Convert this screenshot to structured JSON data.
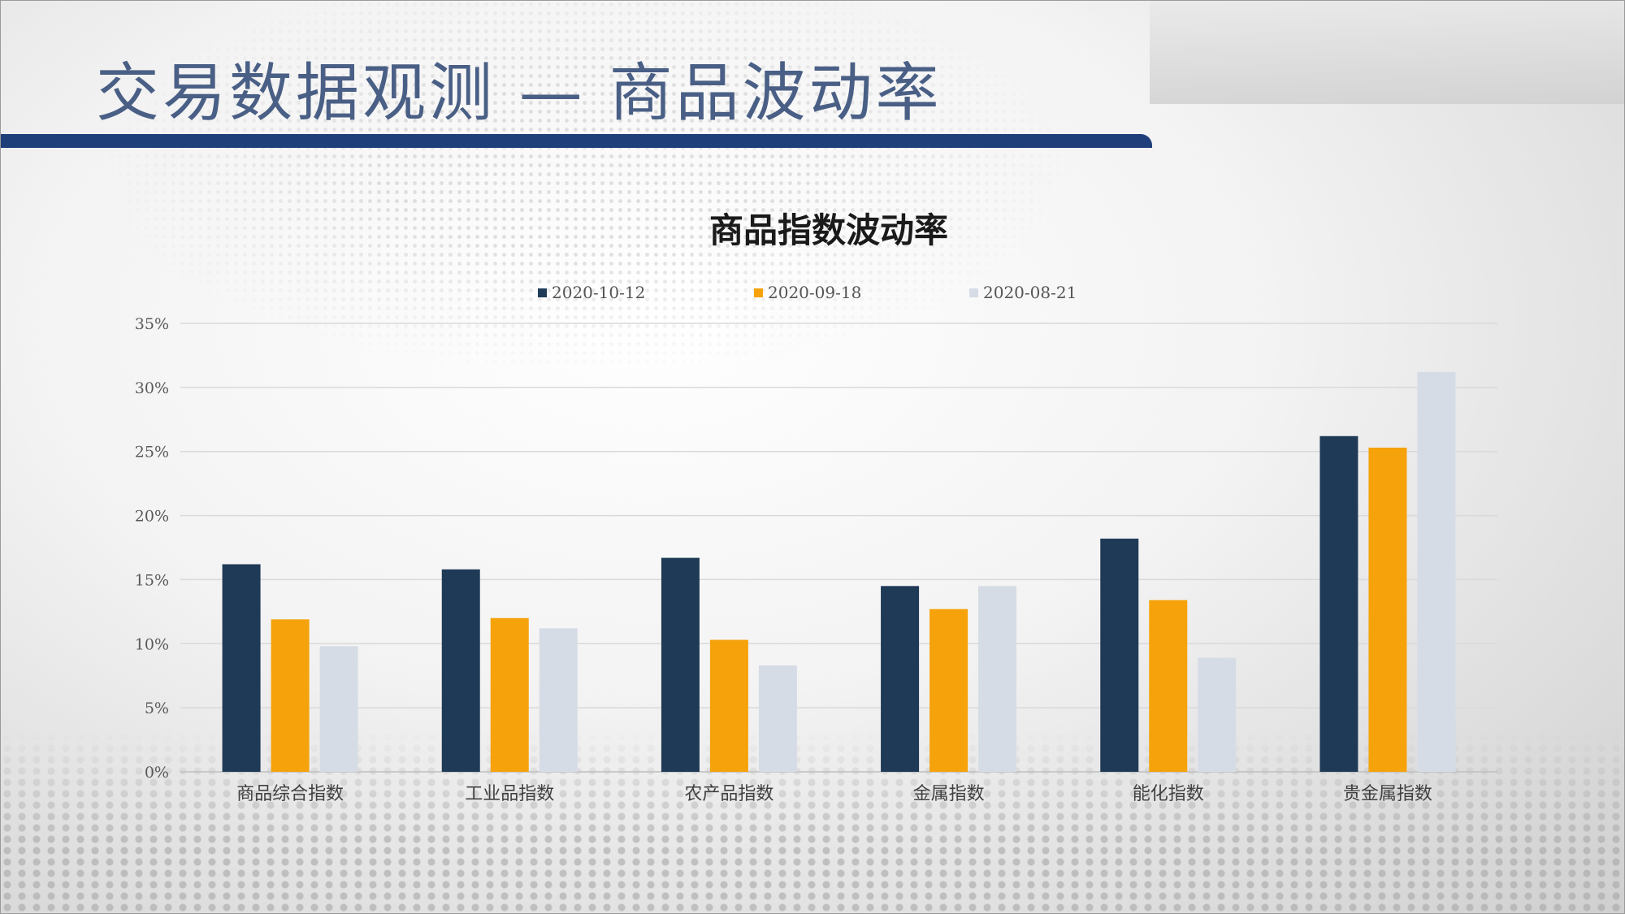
{
  "slide": {
    "title": "交易数据观测  —  商品波动率"
  },
  "colors": {
    "series": [
      "#1f3a56",
      "#f5a20b",
      "#d6dce5"
    ],
    "grid": "#d9d9d9",
    "title_bar": "#1f3f7a"
  },
  "chart_data": {
    "type": "bar",
    "title": "商品指数波动率",
    "categories": [
      "商品综合指数",
      "工业品指数",
      "农产品指数",
      "金属指数",
      "能化指数",
      "贵金属指数"
    ],
    "series": [
      {
        "name": "2020-10-12",
        "values": [
          16.2,
          15.8,
          16.7,
          14.5,
          18.2,
          26.2
        ]
      },
      {
        "name": "2020-09-18",
        "values": [
          11.9,
          12.0,
          10.3,
          12.7,
          13.4,
          25.3
        ]
      },
      {
        "name": "2020-08-21",
        "values": [
          9.8,
          11.2,
          8.3,
          14.5,
          8.9,
          31.2
        ]
      }
    ],
    "ylim": [
      0,
      35
    ],
    "yticks": [
      "0%",
      "5%",
      "10%",
      "15%",
      "20%",
      "25%",
      "30%",
      "35%"
    ],
    "xlabel": "",
    "ylabel": "",
    "grid": true,
    "legend": "top-center"
  }
}
